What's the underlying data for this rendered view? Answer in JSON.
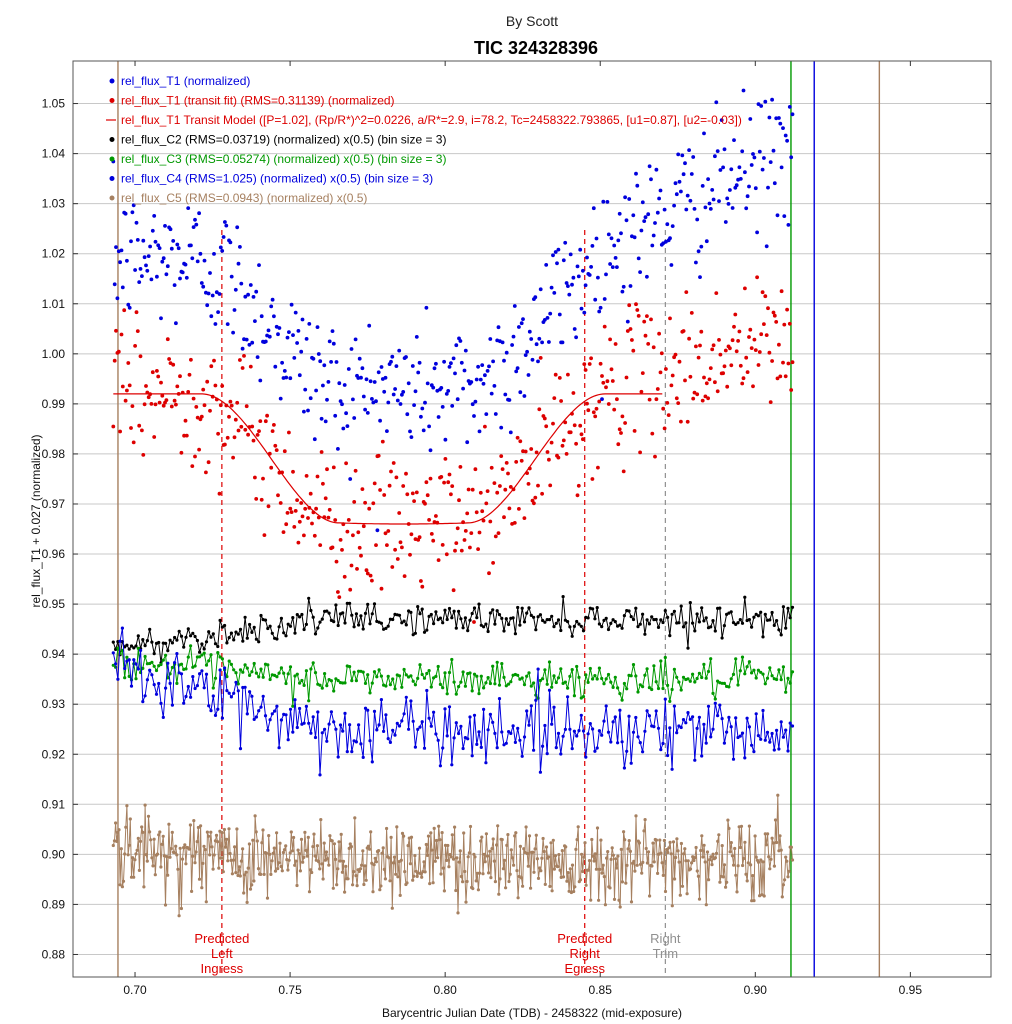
{
  "chart_data": {
    "type": "scatter",
    "subtitle": "By Scott",
    "title": "TIC 324328396",
    "xlabel": "Barycentric Julian Date (TDB) - 2458322 (mid-exposure)",
    "ylabel": "rel_flux_T1 + 0.027 (normalized)",
    "xlim": [
      0.68,
      0.976
    ],
    "ylim": [
      0.8755,
      1.0585
    ],
    "x_ticks": [
      0.7,
      0.75,
      0.8,
      0.85,
      0.9,
      0.95
    ],
    "x_tick_labels": [
      "0.70",
      "0.75",
      "0.80",
      "0.85",
      "0.90",
      "0.95"
    ],
    "y_ticks": [
      0.88,
      0.89,
      0.9,
      0.91,
      0.92,
      0.93,
      0.94,
      0.95,
      0.96,
      0.97,
      0.98,
      0.99,
      1.0,
      1.01,
      1.02,
      1.03,
      1.04,
      1.05
    ],
    "y_tick_labels": [
      "0.88",
      "0.89",
      "0.90",
      "0.91",
      "0.92",
      "0.93",
      "0.94",
      "0.95",
      "0.96",
      "0.97",
      "0.98",
      "0.99",
      "1.00",
      "1.01",
      "1.02",
      "1.03",
      "1.04",
      "1.05"
    ],
    "grid": true,
    "legend_position": "top-left",
    "legend": [
      {
        "label": "rel_flux_T1 (normalized)",
        "color": "#0000dd",
        "marker": "dot"
      },
      {
        "label": "rel_flux_T1 (transit fit) (RMS=0.31139) (normalized)",
        "color": "#dd0000",
        "marker": "dot"
      },
      {
        "label": "rel_flux_T1 Transit Model ([P=1.02], (Rp/R*)^2=0.0226, a/R*=2.9, i=78.2, Tc=2458322.793865, [u1=0.87], [u2=-0.03])",
        "color": "#dd0000",
        "marker": "line"
      },
      {
        "label": "rel_flux_C2 (RMS=0.03719) (normalized) x(0.5) (bin size = 3)",
        "color": "#000000",
        "marker": "dot"
      },
      {
        "label": "rel_flux_C3 (RMS=0.05274) (normalized) x(0.5) (bin size = 3)",
        "color": "#009900",
        "marker": "dot"
      },
      {
        "label": "rel_flux_C4 (RMS=1.025) (normalized) x(0.5) (bin size = 3)",
        "color": "#0000dd",
        "marker": "dot"
      },
      {
        "label": "rel_flux_C5 (RMS=0.0943) (normalized) x(0.5)",
        "color": "#a68060",
        "marker": "dot"
      }
    ],
    "series": [
      {
        "name": "rel_flux_T1 (normalized)",
        "color": "#0000dd",
        "style": "points",
        "model": {
          "x_start": 0.693,
          "x_end": 0.912,
          "n": 500,
          "baseline": 1.019,
          "depth": 0.026,
          "ingress": 0.728,
          "egress": 0.845,
          "t14_edge": 0.02,
          "scatter": 0.007,
          "slope_after": 0.022
        }
      },
      {
        "name": "rel_flux_T1 (transit fit) (RMS=0.31139) (normalized)",
        "color": "#dd0000",
        "style": "points",
        "model": {
          "x_start": 0.693,
          "x_end": 0.912,
          "n": 500,
          "baseline": 0.992,
          "depth": 0.026,
          "ingress": 0.728,
          "egress": 0.845,
          "t14_edge": 0.02,
          "scatter": 0.007,
          "slope_after": 0.011
        }
      },
      {
        "name": "rel_flux_T1 Transit Model ([P=1.02], (Rp/R*)^2=0.0226, a/R*=2.9, i=78.2, Tc=2458322.793865, [u1=0.87], [u2=-0.03])",
        "color": "#dd0000",
        "style": "line",
        "model": {
          "x_start": 0.693,
          "x_end": 0.87,
          "baseline": 0.992,
          "bottom": 0.966,
          "ingress": 0.728,
          "egress": 0.845,
          "edge_width": 0.022
        }
      },
      {
        "name": "rel_flux_C2 (RMS=0.03719) (normalized) x(0.5) (bin size = 3)",
        "color": "#000000",
        "style": "line-points",
        "model": {
          "x_start": 0.693,
          "x_end": 0.912,
          "n": 300,
          "start": 0.941,
          "end": 0.947,
          "rise_end": 0.76,
          "scatter": 0.0015
        }
      },
      {
        "name": "rel_flux_C3 (RMS=0.05274) (normalized) x(0.5) (bin size = 3)",
        "color": "#009900",
        "style": "line-points",
        "model": {
          "x_start": 0.693,
          "x_end": 0.912,
          "n": 300,
          "start": 0.939,
          "end": 0.935,
          "rise_end": 0.75,
          "scatter": 0.0018
        }
      },
      {
        "name": "rel_flux_C4 (RMS=1.025) (normalized) x(0.5) (bin size = 3)",
        "color": "#0000dd",
        "style": "line-points",
        "model": {
          "x_start": 0.693,
          "x_end": 0.912,
          "n": 300,
          "start": 0.938,
          "end": 0.925,
          "rise_end": 0.76,
          "scatter": 0.0035
        }
      },
      {
        "name": "rel_flux_C5 (RMS=0.0943) (normalized) x(0.5)",
        "color": "#a68060",
        "style": "line-points",
        "model": {
          "x_start": 0.693,
          "x_end": 0.912,
          "n": 600,
          "start": 0.901,
          "end": 0.899,
          "rise_end": 0.75,
          "scatter": 0.004
        }
      }
    ],
    "vertical_markers": [
      {
        "x": 0.728,
        "color": "#dd0000",
        "dash": true,
        "label_lines": [
          "Predicted",
          "Left",
          "Ingress"
        ]
      },
      {
        "x": 0.845,
        "color": "#dd0000",
        "dash": true,
        "label_lines": [
          "Predicted",
          "Right",
          "Egress"
        ]
      },
      {
        "x": 0.871,
        "color": "#909090",
        "dash": true,
        "label_lines": [
          "Right",
          "Trim"
        ]
      },
      {
        "x": 0.6945,
        "color": "#a68060",
        "dash": false,
        "label_lines": []
      },
      {
        "x": 0.9115,
        "color": "#009900",
        "dash": false,
        "label_lines": []
      },
      {
        "x": 0.919,
        "color": "#0000dd",
        "dash": false,
        "label_lines": []
      },
      {
        "x": 0.94,
        "color": "#a68060",
        "dash": false,
        "label_lines": []
      }
    ]
  }
}
